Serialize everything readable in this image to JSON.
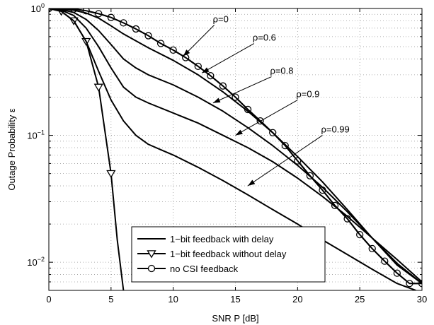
{
  "chart_data": {
    "type": "line",
    "xlabel": "SNR P [dB]",
    "ylabel": "Outage Probability ε",
    "xlim": [
      0,
      30
    ],
    "ylim": [
      0.006,
      1
    ],
    "yscale": "log",
    "grid": true,
    "legend_position": "bottom-center",
    "x_ticks": [
      "0",
      "5",
      "10",
      "15",
      "20",
      "25",
      "30"
    ],
    "y_ticks": [
      {
        "value": 1,
        "base": "10",
        "exp": "0"
      },
      {
        "value": 0.1,
        "base": "10",
        "exp": "−1"
      },
      {
        "value": 0.01,
        "base": "10",
        "exp": "−2"
      }
    ],
    "legend": [
      {
        "label": "1−bit feedback with delay",
        "marker": "none"
      },
      {
        "label": "1−bit feedback without delay",
        "marker": "triangle-down"
      },
      {
        "label": "no CSI feedback",
        "marker": "circle"
      }
    ],
    "series": [
      {
        "name": "no CSI feedback",
        "marker": "circle",
        "x": [
          0,
          1,
          2,
          3,
          4,
          5,
          6,
          7,
          8,
          9,
          10,
          11,
          12,
          13,
          14,
          15,
          16,
          17,
          18,
          19,
          20,
          21,
          22,
          23,
          24,
          25,
          26,
          27,
          28,
          29,
          30
        ],
        "y": [
          1.0,
          1.0,
          0.99,
          0.96,
          0.91,
          0.85,
          0.77,
          0.69,
          0.61,
          0.53,
          0.47,
          0.41,
          0.35,
          0.295,
          0.245,
          0.2,
          0.16,
          0.13,
          0.105,
          0.083,
          0.063,
          0.048,
          0.037,
          0.028,
          0.022,
          0.0165,
          0.0128,
          0.0102,
          0.0082,
          0.0068,
          0.0068
        ]
      },
      {
        "name": "1−bit feedback without delay",
        "marker": "triangle-down",
        "x": [
          0,
          1,
          2,
          3,
          4,
          5,
          5.5,
          6
        ],
        "y": [
          1.0,
          0.95,
          0.8,
          0.55,
          0.24,
          0.05,
          0.015,
          0.006
        ]
      },
      {
        "label": "ρ=0",
        "x": [
          0,
          1,
          2,
          3,
          4,
          5,
          6,
          7,
          8,
          9,
          10,
          11,
          12,
          13,
          14,
          15,
          16,
          17,
          18,
          19,
          20,
          21,
          22,
          23,
          24,
          25,
          26,
          27,
          28,
          29,
          30
        ],
        "y": [
          1.0,
          1.0,
          0.99,
          0.96,
          0.91,
          0.85,
          0.77,
          0.69,
          0.61,
          0.53,
          0.47,
          0.41,
          0.35,
          0.295,
          0.245,
          0.2,
          0.16,
          0.13,
          0.105,
          0.083,
          0.063,
          0.048,
          0.037,
          0.028,
          0.022,
          0.0165,
          0.0128,
          0.0102,
          0.0082,
          0.0068,
          0.0068
        ]
      },
      {
        "label": "ρ=0.6",
        "x": [
          0,
          1,
          2,
          3,
          4,
          5,
          6,
          8,
          10,
          12,
          14,
          16,
          18,
          20,
          22,
          24,
          26,
          28,
          30
        ],
        "y": [
          1.0,
          0.99,
          0.97,
          0.92,
          0.84,
          0.73,
          0.63,
          0.49,
          0.39,
          0.3,
          0.22,
          0.155,
          0.105,
          0.068,
          0.043,
          0.026,
          0.0155,
          0.0095,
          0.0068
        ]
      },
      {
        "label": "ρ=0.8",
        "x": [
          0,
          1,
          2,
          3,
          4,
          5,
          6,
          7,
          8,
          10,
          12,
          14,
          16,
          18,
          20,
          22,
          24,
          26,
          28,
          30
        ],
        "y": [
          1.0,
          0.98,
          0.93,
          0.82,
          0.67,
          0.52,
          0.4,
          0.34,
          0.3,
          0.25,
          0.2,
          0.155,
          0.115,
          0.083,
          0.058,
          0.039,
          0.025,
          0.0155,
          0.0098,
          0.0068
        ]
      },
      {
        "label": "ρ=0.9",
        "x": [
          0,
          1,
          2,
          3,
          4,
          5,
          6,
          7,
          8,
          10,
          12,
          14,
          16,
          18,
          20,
          22,
          24,
          26,
          28,
          30
        ],
        "y": [
          1.0,
          0.97,
          0.88,
          0.7,
          0.5,
          0.34,
          0.24,
          0.2,
          0.18,
          0.15,
          0.125,
          0.1,
          0.08,
          0.062,
          0.046,
          0.033,
          0.023,
          0.0155,
          0.0105,
          0.007
        ]
      },
      {
        "label": "ρ=0.99",
        "x": [
          0,
          1,
          2,
          3,
          4,
          5,
          6,
          7,
          8,
          9,
          10,
          12,
          14,
          16,
          18,
          20,
          22,
          24,
          26,
          28,
          29.5
        ],
        "y": [
          1.0,
          0.95,
          0.8,
          0.55,
          0.32,
          0.19,
          0.13,
          0.1,
          0.085,
          0.077,
          0.07,
          0.056,
          0.044,
          0.034,
          0.026,
          0.02,
          0.015,
          0.0115,
          0.0088,
          0.0068,
          0.006
        ]
      }
    ],
    "annotations": [
      {
        "text": "ρ=0",
        "x_from": 13.3,
        "y_from": 0.74,
        "x_to": 10.8,
        "y_to": 0.42
      },
      {
        "text": "ρ=0.6",
        "x_from": 16.5,
        "y_from": 0.53,
        "x_to": 12.3,
        "y_to": 0.31
      },
      {
        "text": "ρ=0.8",
        "x_from": 17.9,
        "y_from": 0.29,
        "x_to": 13.2,
        "y_to": 0.18
      },
      {
        "text": "ρ=0.9",
        "x_from": 20.0,
        "y_from": 0.19,
        "x_to": 15.0,
        "y_to": 0.1
      },
      {
        "text": "ρ=0.99",
        "x_from": 22.0,
        "y_from": 0.1,
        "x_to": 16.0,
        "y_to": 0.04
      }
    ]
  }
}
